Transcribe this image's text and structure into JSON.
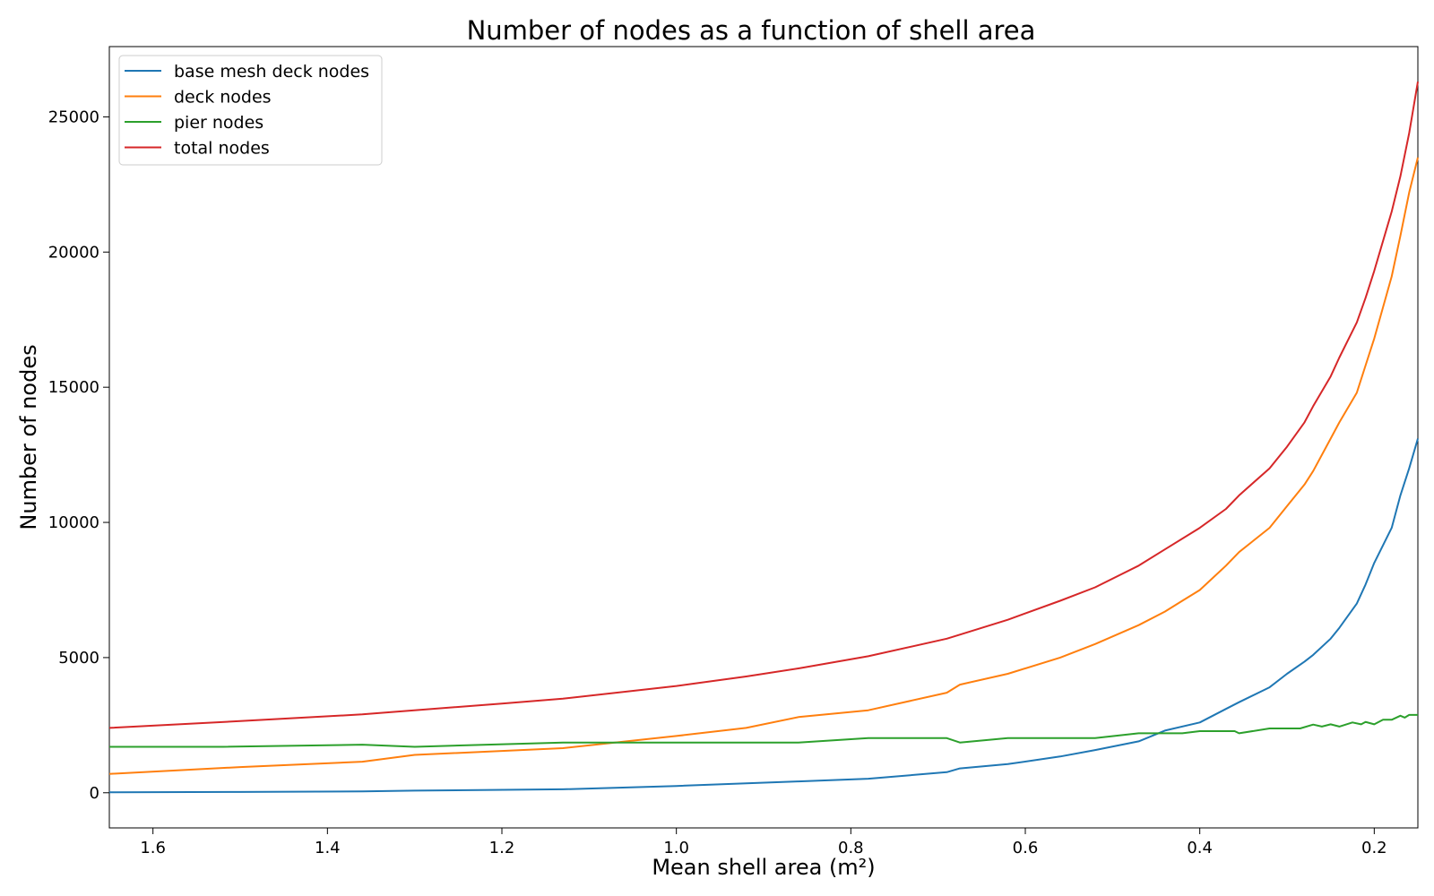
{
  "chart_data": {
    "type": "line",
    "title": "Number of nodes as a function of shell area",
    "xlabel": "Mean shell area (m²)",
    "ylabel": "Number of nodes",
    "xlim": [
      1.65,
      0.15
    ],
    "x_inverted": true,
    "ylim": [
      -1300,
      27600
    ],
    "xticks": [
      1.6,
      1.4,
      1.2,
      1.0,
      0.8,
      0.6,
      0.4,
      0.2
    ],
    "xtick_labels": [
      "1.6",
      "1.4",
      "1.2",
      "1.0",
      "0.8",
      "0.6",
      "0.4",
      "0.2"
    ],
    "yticks": [
      0,
      5000,
      10000,
      15000,
      20000,
      25000
    ],
    "ytick_labels": [
      "0",
      "5000",
      "10000",
      "15000",
      "20000",
      "25000"
    ],
    "grid": false,
    "legend_position": "top-left",
    "series": [
      {
        "name": "base mesh deck nodes",
        "color": "#1f77b4",
        "points": [
          [
            1.65,
            20
          ],
          [
            1.5,
            30
          ],
          [
            1.36,
            50
          ],
          [
            1.3,
            80
          ],
          [
            1.13,
            130
          ],
          [
            1.0,
            250
          ],
          [
            0.86,
            420
          ],
          [
            0.78,
            520
          ],
          [
            0.69,
            760
          ],
          [
            0.675,
            900
          ],
          [
            0.62,
            1060
          ],
          [
            0.56,
            1340
          ],
          [
            0.52,
            1580
          ],
          [
            0.47,
            1900
          ],
          [
            0.44,
            2300
          ],
          [
            0.4,
            2600
          ],
          [
            0.37,
            3100
          ],
          [
            0.355,
            3350
          ],
          [
            0.32,
            3900
          ],
          [
            0.3,
            4400
          ],
          [
            0.28,
            4850
          ],
          [
            0.27,
            5100
          ],
          [
            0.25,
            5700
          ],
          [
            0.24,
            6100
          ],
          [
            0.22,
            7000
          ],
          [
            0.21,
            7700
          ],
          [
            0.2,
            8500
          ],
          [
            0.18,
            9800
          ],
          [
            0.17,
            11000
          ],
          [
            0.16,
            12000
          ],
          [
            0.15,
            13100
          ]
        ]
      },
      {
        "name": "deck nodes",
        "color": "#ff7f0e",
        "points": [
          [
            1.65,
            700
          ],
          [
            1.5,
            950
          ],
          [
            1.36,
            1150
          ],
          [
            1.3,
            1400
          ],
          [
            1.13,
            1650
          ],
          [
            1.0,
            2100
          ],
          [
            0.92,
            2400
          ],
          [
            0.86,
            2800
          ],
          [
            0.78,
            3050
          ],
          [
            0.69,
            3700
          ],
          [
            0.675,
            4000
          ],
          [
            0.62,
            4400
          ],
          [
            0.56,
            5000
          ],
          [
            0.52,
            5500
          ],
          [
            0.47,
            6200
          ],
          [
            0.44,
            6700
          ],
          [
            0.42,
            7100
          ],
          [
            0.4,
            7500
          ],
          [
            0.37,
            8400
          ],
          [
            0.355,
            8900
          ],
          [
            0.32,
            9800
          ],
          [
            0.3,
            10600
          ],
          [
            0.28,
            11400
          ],
          [
            0.27,
            11900
          ],
          [
            0.25,
            13100
          ],
          [
            0.24,
            13700
          ],
          [
            0.22,
            14800
          ],
          [
            0.21,
            15800
          ],
          [
            0.2,
            16800
          ],
          [
            0.18,
            19100
          ],
          [
            0.17,
            20600
          ],
          [
            0.16,
            22200
          ],
          [
            0.15,
            23500
          ]
        ]
      },
      {
        "name": "pier nodes",
        "color": "#2ca02c",
        "points": [
          [
            1.65,
            1700
          ],
          [
            1.52,
            1700
          ],
          [
            1.36,
            1780
          ],
          [
            1.3,
            1700
          ],
          [
            1.13,
            1860
          ],
          [
            1.0,
            1860
          ],
          [
            0.86,
            1860
          ],
          [
            0.78,
            2020
          ],
          [
            0.69,
            2020
          ],
          [
            0.675,
            1860
          ],
          [
            0.62,
            2020
          ],
          [
            0.52,
            2020
          ],
          [
            0.47,
            2200
          ],
          [
            0.42,
            2200
          ],
          [
            0.4,
            2280
          ],
          [
            0.36,
            2280
          ],
          [
            0.355,
            2200
          ],
          [
            0.32,
            2380
          ],
          [
            0.285,
            2380
          ],
          [
            0.27,
            2520
          ],
          [
            0.26,
            2450
          ],
          [
            0.25,
            2530
          ],
          [
            0.24,
            2450
          ],
          [
            0.225,
            2600
          ],
          [
            0.215,
            2530
          ],
          [
            0.21,
            2620
          ],
          [
            0.2,
            2530
          ],
          [
            0.19,
            2700
          ],
          [
            0.18,
            2700
          ],
          [
            0.17,
            2850
          ],
          [
            0.165,
            2780
          ],
          [
            0.16,
            2880
          ],
          [
            0.15,
            2880
          ]
        ]
      },
      {
        "name": "total nodes",
        "color": "#d62728",
        "points": [
          [
            1.65,
            2400
          ],
          [
            1.5,
            2650
          ],
          [
            1.36,
            2900
          ],
          [
            1.2,
            3300
          ],
          [
            1.13,
            3480
          ],
          [
            1.0,
            3950
          ],
          [
            0.92,
            4300
          ],
          [
            0.86,
            4600
          ],
          [
            0.78,
            5050
          ],
          [
            0.69,
            5700
          ],
          [
            0.675,
            5850
          ],
          [
            0.62,
            6400
          ],
          [
            0.56,
            7100
          ],
          [
            0.52,
            7600
          ],
          [
            0.47,
            8400
          ],
          [
            0.44,
            9000
          ],
          [
            0.4,
            9800
          ],
          [
            0.37,
            10500
          ],
          [
            0.355,
            11000
          ],
          [
            0.32,
            12000
          ],
          [
            0.3,
            12800
          ],
          [
            0.28,
            13700
          ],
          [
            0.27,
            14300
          ],
          [
            0.25,
            15400
          ],
          [
            0.24,
            16100
          ],
          [
            0.22,
            17400
          ],
          [
            0.21,
            18300
          ],
          [
            0.2,
            19300
          ],
          [
            0.18,
            21500
          ],
          [
            0.17,
            22800
          ],
          [
            0.16,
            24400
          ],
          [
            0.15,
            26300
          ]
        ]
      }
    ]
  }
}
